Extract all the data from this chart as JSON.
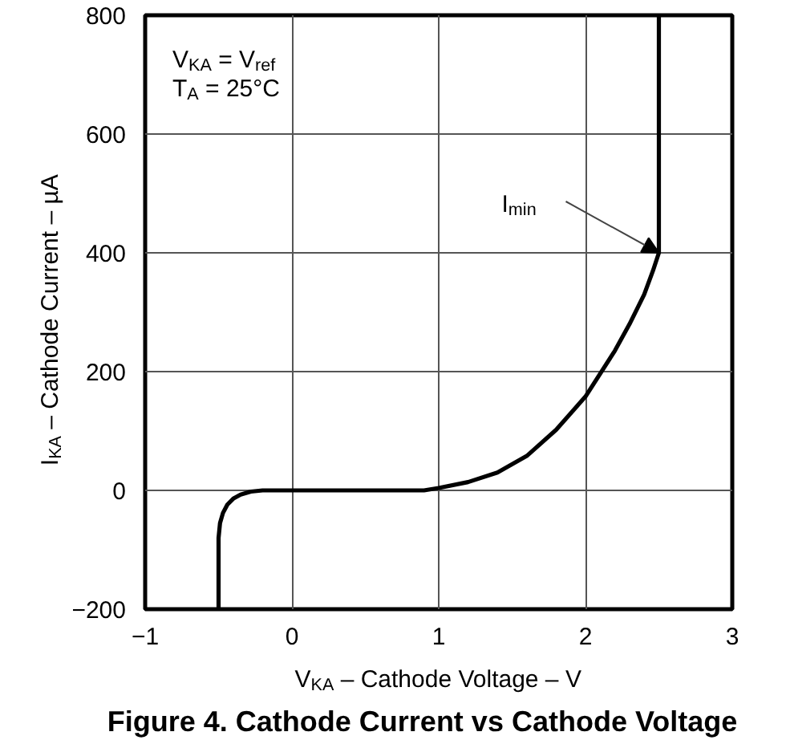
{
  "chart_data": {
    "type": "line",
    "title": "Figure 4. Cathode Current vs Cathode Voltage",
    "xlabel": "V$_{KA}$ – Cathode Voltage – V",
    "ylabel": "I$_{KA}$ – Cathode Current – µA",
    "series": [
      {
        "color": "#000000",
        "x": [
          -0.5,
          -0.5,
          -0.49,
          -0.47,
          -0.44,
          -0.4,
          -0.35,
          -0.28,
          -0.2,
          0.9,
          1.0,
          1.2,
          1.4,
          1.6,
          1.8,
          2.0,
          2.2,
          2.3,
          2.4,
          2.46,
          2.5,
          2.5
        ],
        "values": [
          -200,
          -80,
          -55,
          -38,
          -24,
          -14,
          -7,
          -2,
          0,
          0,
          4,
          14,
          30,
          58,
          102,
          158,
          235,
          280,
          330,
          370,
          400,
          800
        ]
      }
    ],
    "xlim": [
      -1,
      3
    ],
    "ylim": [
      -200,
      800
    ],
    "xticks": [
      {
        "value": -1,
        "label": "−1"
      },
      0,
      1,
      2,
      3
    ],
    "yticks": [
      {
        "value": -200,
        "label": "−200"
      },
      0,
      200,
      400,
      600,
      800
    ],
    "grid": true,
    "line_style": "solid",
    "annotations": [
      "V$_{KA}$ = V$_{ref}$",
      "T$_{A}$ = 25°C",
      {
        "text": "I$_{min}$",
        "x": 2.5,
        "y": 400
      }
    ]
  }
}
